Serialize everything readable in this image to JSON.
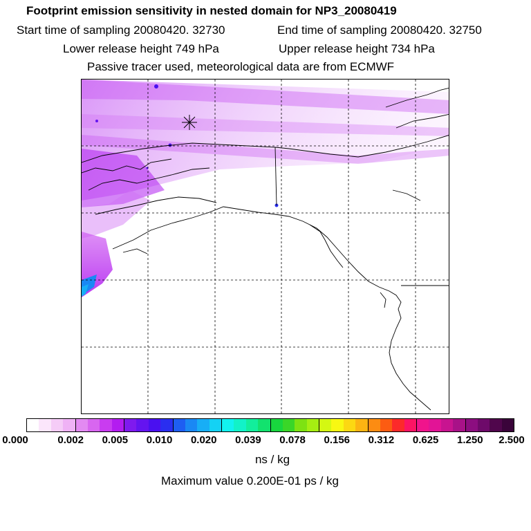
{
  "header": {
    "title": "Footprint emission sensitivity in nested domain for NP3_20080419",
    "start_time": "Start time of sampling 20080420. 32730",
    "end_time": "End time of sampling 20080420. 32750",
    "lower_release": "Lower release height  749 hPa",
    "upper_release": "Upper release height  734 hPa",
    "tracer_info": "Passive tracer used, meteorological data are from ECMWF"
  },
  "colorbar": {
    "tick_labels": [
      "0.000",
      "0.002",
      "0.005",
      "0.010",
      "0.020",
      "0.039",
      "0.078",
      "0.156",
      "0.312",
      "0.625",
      "1.250",
      "2.500"
    ],
    "colors": [
      "#ffffff",
      "#fbe6fb",
      "#f5ccf7",
      "#efb2f5",
      "#e38af2",
      "#d866f0",
      "#c93cf0",
      "#b31cf0",
      "#7f1aee",
      "#6414f0",
      "#4a10f0",
      "#2a2ef0",
      "#1e5ef2",
      "#1a88f4",
      "#18aef6",
      "#14d2f4",
      "#12f2f0",
      "#12f2c8",
      "#12ee9c",
      "#12e26e",
      "#18d63e",
      "#3ad628",
      "#7ee212",
      "#a6ee12",
      "#d4f812",
      "#f8f812",
      "#fcd812",
      "#fcb412",
      "#fc8c12",
      "#fc5c12",
      "#fc2a2a",
      "#fc1464",
      "#f0148c",
      "#e21496",
      "#c81490",
      "#a81288",
      "#8c0e80",
      "#6e0a6a",
      "#50064c",
      "#3a043a"
    ],
    "unit_label": "ns / kg",
    "max_value": "Maximum value  0.200E-01 ps / kg"
  },
  "map": {
    "marker": "release-point",
    "plume_color": "#c040f0",
    "coast_color": "#000000"
  }
}
